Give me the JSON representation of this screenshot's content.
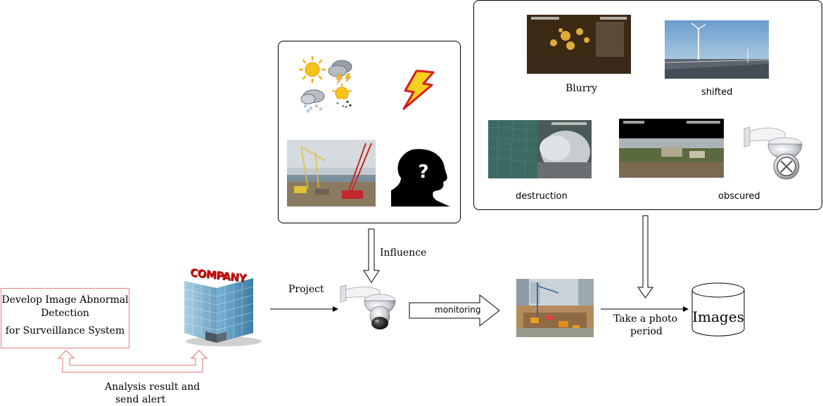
{
  "system_box": {
    "line1": "Develop Image Abnormal",
    "line2": "Detection",
    "line3": "for Surveillance System"
  },
  "company_sign": "COMPANY",
  "feedback": {
    "line1": "Analysis result and",
    "line2": "send alert"
  },
  "project_label": "Project",
  "influence_label": "Influence",
  "monitoring_label": "monitoring",
  "take_photo": {
    "line1": "Take  a photo",
    "line2": "period"
  },
  "images_label": "Images",
  "abnormal_types": {
    "blurry": "Blurry",
    "shifted": "shifted",
    "destruction": "destruction",
    "obscured": "obscured"
  },
  "colors": {
    "system_box_border": "#e88080",
    "feedback_arrow": "#e07070",
    "lightning_fill": "#f8d020",
    "lightning_stroke": "#d81e1e",
    "company_red": "#cc1111",
    "building_glass": "#5a94b8"
  },
  "icons": [
    "sun-icon",
    "thunderstorm-icon",
    "snow-cloud-icon",
    "sleet-sun-icon",
    "lightning-icon",
    "unknown-person-icon",
    "camera-icon",
    "disabled-camera-icon",
    "database-icon",
    "building-icon"
  ]
}
